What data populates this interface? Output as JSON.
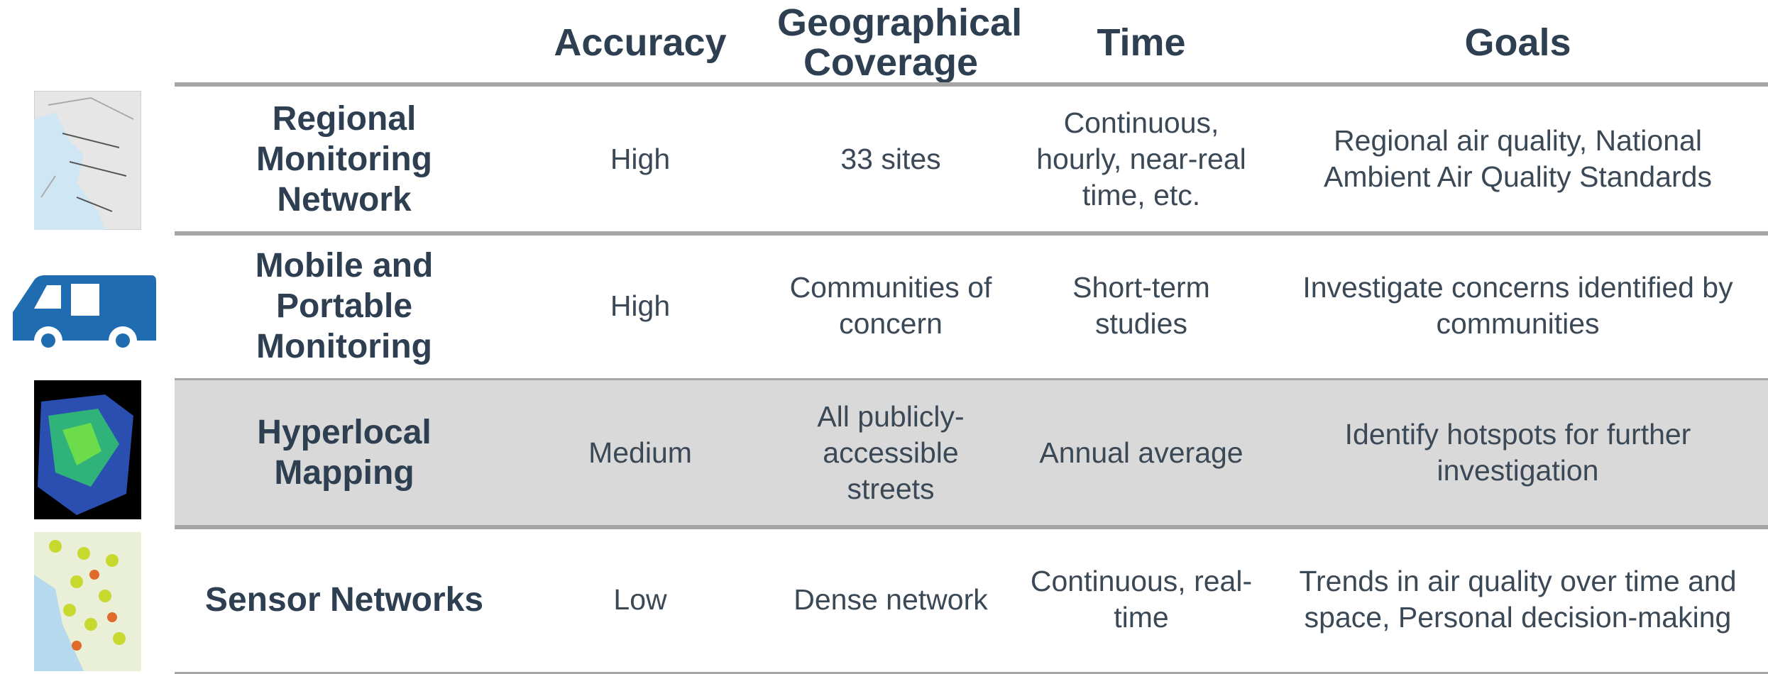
{
  "header": {
    "columns": [
      "Accuracy",
      "Geographical Coverage",
      "Time",
      "Goals"
    ]
  },
  "rows": [
    {
      "label": "Regional Monitoring Network",
      "accuracy": "High",
      "coverage": "33 sites",
      "time": "Continuous, hourly, near-real time, etc.",
      "goals": "Regional air quality, National Ambient Air Quality Standards"
    },
    {
      "label": "Mobile and Portable Monitoring",
      "accuracy": "High",
      "coverage": "Communities of concern",
      "time": "Short-term studies",
      "goals": "Investigate concerns identified by communities"
    },
    {
      "label": "Hyperlocal Mapping",
      "accuracy": "Medium",
      "coverage": "All publicly-accessible streets",
      "time": "Annual average",
      "goals": "Identify hotspots for further investigation"
    },
    {
      "label": "Sensor Networks",
      "accuracy": "Low",
      "coverage": "Dense network",
      "time": "Continuous, real-time",
      "goals": "Trends in air quality over time and space, Personal decision-making"
    }
  ]
}
